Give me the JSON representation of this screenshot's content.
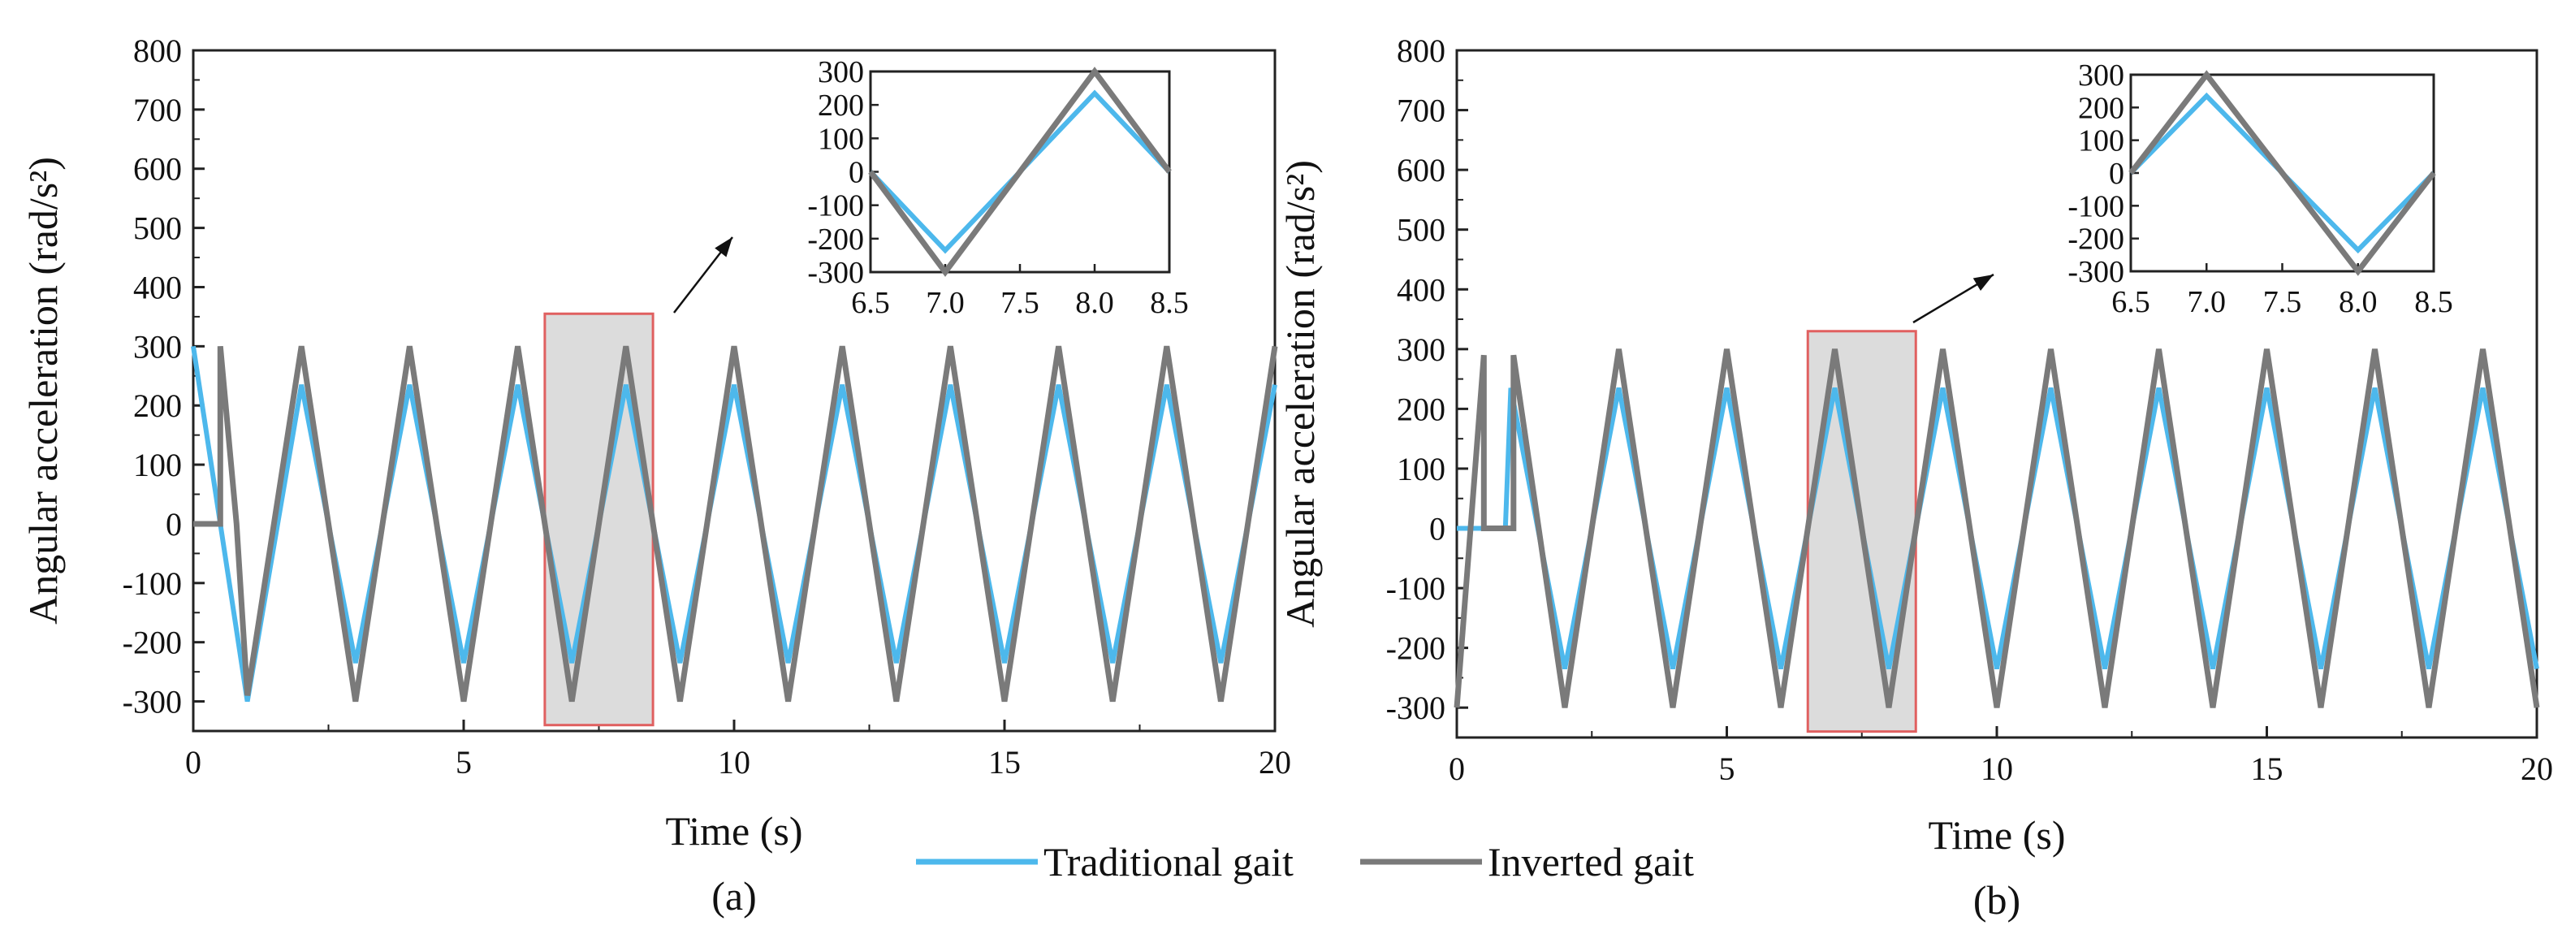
{
  "legend": [
    {
      "key": "traditional",
      "label": "Traditional gait",
      "color": "#4db8ec"
    },
    {
      "key": "inverted",
      "label": "Inverted gait",
      "color": "#7a7a7a"
    }
  ],
  "chart_data": [
    {
      "id": "a",
      "type": "line",
      "caption": "(a)",
      "xlabel": "Time (s)",
      "ylabel": "Angular acceleration (rad/s²)",
      "xlim": [
        0,
        20
      ],
      "ylim": [
        -350,
        800
      ],
      "xticks": [
        0,
        5,
        10,
        15,
        20
      ],
      "yticks": [
        -300,
        -200,
        -100,
        0,
        100,
        200,
        300,
        400,
        500,
        600,
        700,
        800
      ],
      "highlight_x": [
        6.5,
        8.5
      ],
      "highlight_y": [
        -340,
        355
      ],
      "series": [
        {
          "name": "Traditional gait",
          "color": "#4db8ec",
          "points": [
            [
              0,
              300
            ],
            [
              1,
              -300
            ],
            [
              2,
              235
            ],
            [
              3,
              -235
            ],
            [
              4,
              235
            ],
            [
              5,
              -235
            ],
            [
              6,
              235
            ],
            [
              7,
              -235
            ],
            [
              8,
              235
            ],
            [
              9,
              -235
            ],
            [
              10,
              235
            ],
            [
              11,
              -235
            ],
            [
              12,
              235
            ],
            [
              13,
              -235
            ],
            [
              14,
              235
            ],
            [
              15,
              -235
            ],
            [
              16,
              235
            ],
            [
              17,
              -235
            ],
            [
              18,
              235
            ],
            [
              19,
              -235
            ],
            [
              20,
              235
            ]
          ]
        },
        {
          "name": "Inverted gait",
          "color": "#7a7a7a",
          "points": [
            [
              0,
              0
            ],
            [
              0.5,
              0
            ],
            [
              0.5,
              300
            ],
            [
              0.8,
              0
            ],
            [
              1,
              -290
            ],
            [
              2,
              300
            ],
            [
              3,
              -300
            ],
            [
              4,
              300
            ],
            [
              5,
              -300
            ],
            [
              6,
              300
            ],
            [
              7,
              -300
            ],
            [
              8,
              300
            ],
            [
              9,
              -300
            ],
            [
              10,
              300
            ],
            [
              11,
              -300
            ],
            [
              12,
              300
            ],
            [
              13,
              -300
            ],
            [
              14,
              300
            ],
            [
              15,
              -300
            ],
            [
              16,
              300
            ],
            [
              17,
              -300
            ],
            [
              18,
              300
            ],
            [
              19,
              -300
            ],
            [
              20,
              300
            ]
          ]
        }
      ],
      "inset": {
        "xlim": [
          6.5,
          8.5
        ],
        "ylim": [
          -300,
          300
        ],
        "xticks": [
          6.5,
          7.0,
          7.5,
          8.0,
          8.5
        ],
        "xtick_labels": [
          "6.5",
          "7.0",
          "7.5",
          "8.0",
          "8.5"
        ],
        "yticks": [
          -300,
          -200,
          -100,
          0,
          100,
          200,
          300
        ],
        "series": [
          {
            "name": "Traditional gait",
            "color": "#4db8ec",
            "points": [
              [
                6.5,
                0
              ],
              [
                7,
                -235
              ],
              [
                8,
                235
              ],
              [
                8.5,
                0
              ]
            ]
          },
          {
            "name": "Inverted gait",
            "color": "#7a7a7a",
            "points": [
              [
                6.5,
                0
              ],
              [
                7,
                -300
              ],
              [
                8,
                300
              ],
              [
                8.5,
                0
              ]
            ]
          }
        ]
      }
    },
    {
      "id": "b",
      "type": "line",
      "caption": "(b)",
      "xlabel": "Time (s)",
      "ylabel": "Angular acceleration (rad/s²)",
      "xlim": [
        0,
        20
      ],
      "ylim": [
        -350,
        800
      ],
      "xticks": [
        0,
        5,
        10,
        15,
        20
      ],
      "yticks": [
        -300,
        -200,
        -100,
        0,
        100,
        200,
        300,
        400,
        500,
        600,
        700,
        800
      ],
      "highlight_x": [
        6.5,
        8.5
      ],
      "highlight_y": [
        -340,
        330
      ],
      "series": [
        {
          "name": "Traditional gait",
          "color": "#4db8ec",
          "points": [
            [
              0,
              0
            ],
            [
              0.9,
              0
            ],
            [
              1,
              235
            ],
            [
              2,
              -235
            ],
            [
              3,
              235
            ],
            [
              4,
              -235
            ],
            [
              5,
              235
            ],
            [
              6,
              -235
            ],
            [
              7,
              235
            ],
            [
              8,
              -235
            ],
            [
              9,
              235
            ],
            [
              10,
              -235
            ],
            [
              11,
              235
            ],
            [
              12,
              -235
            ],
            [
              13,
              235
            ],
            [
              14,
              -235
            ],
            [
              15,
              235
            ],
            [
              16,
              -235
            ],
            [
              17,
              235
            ],
            [
              18,
              -235
            ],
            [
              19,
              235
            ],
            [
              20,
              -235
            ]
          ]
        },
        {
          "name": "Inverted gait",
          "color": "#7a7a7a",
          "points": [
            [
              0,
              -300
            ],
            [
              0.5,
              290
            ],
            [
              0.5,
              0
            ],
            [
              1.05,
              0
            ],
            [
              1.05,
              290
            ],
            [
              2,
              -300
            ],
            [
              3,
              300
            ],
            [
              4,
              -300
            ],
            [
              5,
              300
            ],
            [
              6,
              -300
            ],
            [
              7,
              300
            ],
            [
              8,
              -300
            ],
            [
              9,
              300
            ],
            [
              10,
              -300
            ],
            [
              11,
              300
            ],
            [
              12,
              -300
            ],
            [
              13,
              300
            ],
            [
              14,
              -300
            ],
            [
              15,
              300
            ],
            [
              16,
              -300
            ],
            [
              17,
              300
            ],
            [
              18,
              -300
            ],
            [
              19,
              300
            ],
            [
              20,
              -300
            ]
          ]
        }
      ],
      "inset": {
        "xlim": [
          6.5,
          8.5
        ],
        "ylim": [
          -300,
          300
        ],
        "xticks": [
          6.5,
          7.0,
          7.5,
          8.0,
          8.5
        ],
        "xtick_labels": [
          "6.5",
          "7.0",
          "7.5",
          "8.0",
          "8.5"
        ],
        "yticks": [
          -300,
          -200,
          -100,
          0,
          100,
          200,
          300
        ],
        "series": [
          {
            "name": "Traditional gait",
            "color": "#4db8ec",
            "points": [
              [
                6.5,
                0
              ],
              [
                7,
                235
              ],
              [
                8,
                -235
              ],
              [
                8.5,
                0
              ]
            ]
          },
          {
            "name": "Inverted gait",
            "color": "#7a7a7a",
            "points": [
              [
                6.5,
                0
              ],
              [
                7,
                300
              ],
              [
                8,
                -300
              ],
              [
                8.5,
                0
              ]
            ]
          }
        ]
      }
    }
  ]
}
